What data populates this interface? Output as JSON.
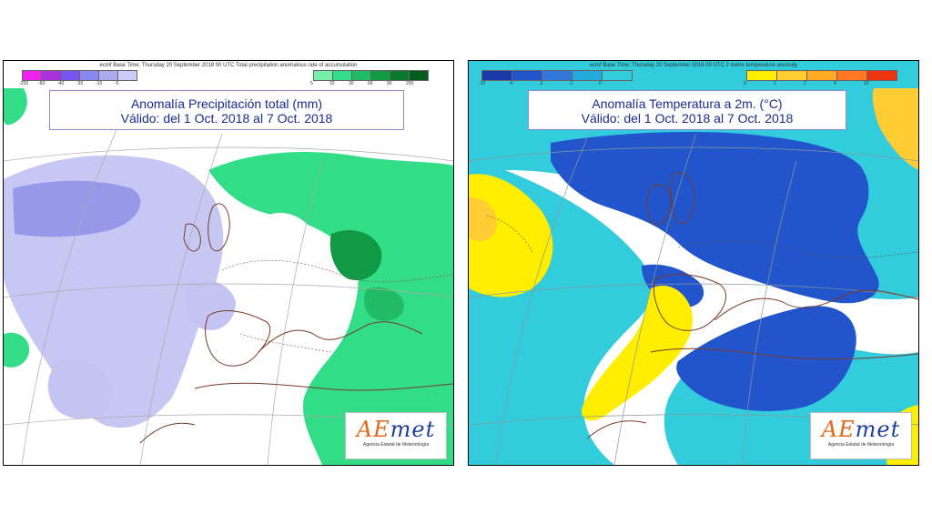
{
  "panels": [
    {
      "header": "ecmf  Base Time: Thursday 20 September 2018 00 UTC  Total precipitation anomalous rate of accumulation",
      "title_line1": "Anomalía Precipitación total (mm)",
      "title_line2": "Válido: del 1 Oct. 2018 al 7 Oct. 2018",
      "legend_neg": {
        "colors": [
          "#ee22ee",
          "#aa33dd",
          "#7755ee",
          "#8888ee",
          "#aaaaee",
          "#ccccf6"
        ],
        "ticks": [
          "-200",
          "-60",
          "-40",
          "-30",
          "-10",
          "-5"
        ]
      },
      "legend_pos": {
        "colors": [
          "#77eeaa",
          "#33dd88",
          "#22bb66",
          "#119944",
          "#0b7a2e",
          "#065c1e"
        ],
        "ticks": [
          "5",
          "10",
          "30",
          "60",
          "90",
          "200"
        ]
      },
      "logo": {
        "name_ae": "AE",
        "name_rest": "met",
        "subtitle": "Agencia Estatal de Meteorología"
      }
    },
    {
      "header": "ecmf  Base Time: Thursday 20 September 2018 00 UTC  2 metre temperature anomaly",
      "title_line1": "Anomalía Temperatura a 2m. (°C)",
      "title_line2": "Válido: del 1 Oct. 2018 al 7 Oct. 2018",
      "legend_neg": {
        "colors": [
          "#1a3aa8",
          "#2255cc",
          "#3377dd",
          "#22aadd",
          "#33ccdd"
        ],
        "ticks": [
          "-10",
          "-4",
          "-2",
          "-1",
          "0"
        ]
      },
      "legend_pos": {
        "colors": [
          "#ffee00",
          "#ffcc33",
          "#ffaa22",
          "#ff7722",
          "#ee3311"
        ],
        "ticks": [
          "0",
          "1",
          "2",
          "4",
          "10"
        ]
      },
      "logo": {
        "name_ae": "AE",
        "name_rest": "met",
        "subtitle": "Agencia Estatal de Meteorología"
      }
    }
  ]
}
